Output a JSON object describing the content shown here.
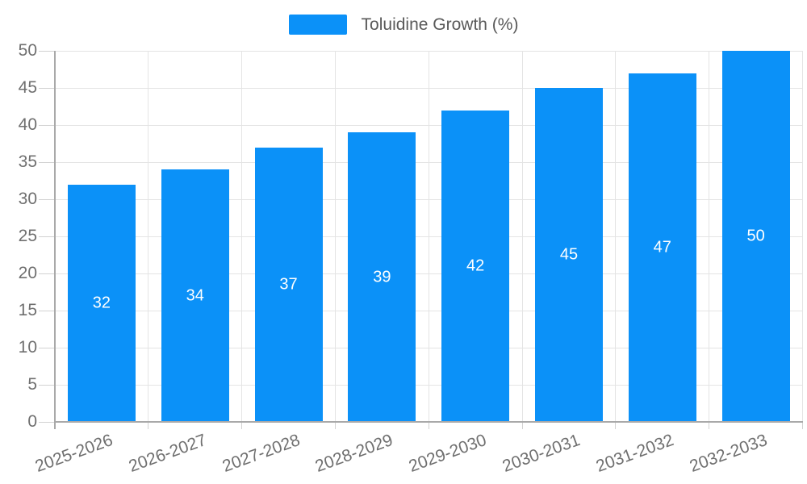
{
  "legend": {
    "label": "Toluidine Growth (%)"
  },
  "chart_data": {
    "type": "bar",
    "title": "",
    "xlabel": "",
    "ylabel": "",
    "categories": [
      "2025-2026",
      "2026-2027",
      "2027-2028",
      "2028-2029",
      "2029-2030",
      "2030-2031",
      "2031-2032",
      "2032-2033"
    ],
    "series": [
      {
        "name": "Toluidine Growth (%)",
        "values": [
          32,
          34,
          37,
          39,
          42,
          45,
          47,
          50
        ]
      }
    ],
    "data_labels_shown": true,
    "ylim": [
      0,
      50
    ],
    "ytick_step": 5,
    "grid": true,
    "legend_position": "top-center",
    "colors": {
      "bar": "#0b91f8",
      "bar_value_text": "#ffffff",
      "axis_line": "#a9a9a9",
      "gridline": "#e4e4e4",
      "tick": "#d2d2d2",
      "axis_text": "#6f6f6f",
      "legend_text": "#595959",
      "background": "#ffffff"
    }
  }
}
